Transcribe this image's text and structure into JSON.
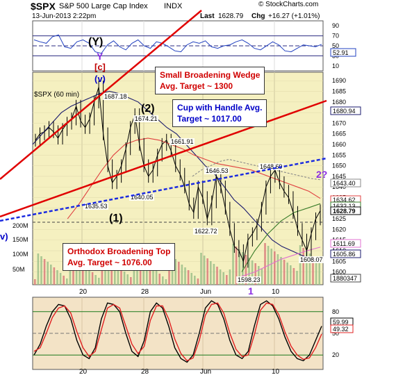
{
  "header": {
    "symbol": "$SPX",
    "name": "S&P 500 Large Cap Index",
    "exchange": "INDX",
    "date": "13-Jun-2013 2:22pm",
    "last_label": "Last",
    "last": "1628.79",
    "chg_label": "Chg",
    "chg": "+16.27 (+1.01%)",
    "credit": "© StockCharts.com",
    "panel_label": "$SPX (60 min)"
  },
  "annotations": {
    "wedge": {
      "line1": "Small  Broadening Wedge",
      "line2": "Avg. Target ~ 1300"
    },
    "cup": {
      "line1": "Cup with Handle Avg.",
      "line2": "Target ~ 1017.00"
    },
    "top": {
      "line1": "Orthodox Broadening Top",
      "line2": "Avg. Target ~ 1076.00"
    },
    "wave_Y": "(Y)",
    "wave_Y2": "Y",
    "wave_c": "[c]",
    "wave_v": "(v)",
    "wave_2": "(2)",
    "wave_1": "(1)",
    "wave_i": "1",
    "wave_q": "2?",
    "wave_v_left": "v)"
  },
  "chart_data": [
    {
      "type": "line",
      "panel": "rsi-top",
      "ylim": [
        0,
        100
      ],
      "ticks": [
        "10",
        "30",
        "50",
        "70",
        "90"
      ],
      "last_value_label": "52.91",
      "series": [
        {
          "values": [
            62,
            58,
            55,
            68,
            72,
            48,
            45,
            58,
            62,
            55,
            38,
            35,
            52,
            60,
            48,
            42,
            55,
            62,
            50,
            45,
            58,
            55,
            48,
            40,
            38,
            52,
            58,
            55,
            60,
            48,
            45,
            50,
            52,
            58,
            62,
            55,
            45,
            42,
            50,
            58,
            52,
            40,
            38,
            45,
            52,
            50,
            48,
            53
          ]
        }
      ]
    },
    {
      "type": "line",
      "panel": "price",
      "ylim": [
        1594,
        1694
      ],
      "ticks": [
        "1600",
        "1605",
        "1610",
        "1615",
        "1620",
        "1625",
        "1630",
        "1635",
        "1640",
        "1645",
        "1650",
        "1655",
        "1660",
        "1665",
        "1670",
        "1675",
        "1680",
        "1685",
        "1690"
      ],
      "xticks": [
        "20",
        "28",
        "Jun",
        "10"
      ],
      "volume_ticks": [
        "50M",
        "100M",
        "150M",
        "200M"
      ],
      "price_labels": [
        "1687.18",
        "1674.21",
        "1661.91",
        "1646.53",
        "1648.69",
        "1640.05",
        "1635.53",
        "1622.72",
        "1598.23",
        "1608.07"
      ],
      "right_labels": [
        "1680.94",
        "1643.40",
        "1634.62",
        "1632.13",
        "1628.79",
        "1611.69",
        "1605.86",
        "1880347"
      ],
      "series": [
        {
          "name": "close",
          "values": [
            1662,
            1665,
            1666,
            1668,
            1666,
            1663,
            1667,
            1670,
            1672,
            1678,
            1671,
            1668,
            1672,
            1680,
            1687,
            1665,
            1650,
            1642,
            1645,
            1650,
            1658,
            1668,
            1674,
            1660,
            1650,
            1645,
            1648,
            1655,
            1660,
            1662,
            1657,
            1650,
            1646,
            1640,
            1632,
            1628,
            1640,
            1635,
            1625,
            1633,
            1645,
            1640,
            1630,
            1620,
            1612,
            1610,
            1605,
            1615,
            1618,
            1622,
            1630,
            1640,
            1645,
            1648,
            1642,
            1638,
            1635,
            1628,
            1620,
            1615,
            1610,
            1618,
            1625,
            1628.79
          ]
        },
        {
          "name": "ma_black",
          "values": [
            1660,
            1665,
            1670,
            1675,
            1678,
            1680,
            1682,
            1684,
            1685,
            1684,
            1682,
            1680,
            1676,
            1672,
            1668,
            1665,
            1660,
            1655,
            1650,
            1646,
            1640,
            1634,
            1630,
            1625,
            1620,
            1615,
            1612,
            1610,
            1608,
            1606,
            1605.86
          ]
        },
        {
          "name": "ma_red",
          "values": [
            1625,
            1632,
            1640,
            1648,
            1655,
            1660,
            1662,
            1663,
            1662,
            1660,
            1658,
            1655,
            1653,
            1651,
            1650,
            1649,
            1648,
            1646,
            1644,
            1642,
            1640,
            1638,
            1634.62
          ]
        },
        {
          "name": "ma_gray",
          "values": [
            1645,
            1648,
            1650,
            1652,
            1653,
            1652,
            1651,
            1650,
            1649,
            1648,
            1647,
            1646,
            1645,
            1644,
            1643.4
          ]
        },
        {
          "name": "ma_green",
          "values": [
            1600,
            1610,
            1618,
            1624,
            1628,
            1630,
            1632.13
          ]
        },
        {
          "name": "ma_pink",
          "values": [
            1598,
            1600,
            1603,
            1606,
            1608,
            1610,
            1611.69
          ]
        }
      ]
    },
    {
      "type": "line",
      "panel": "stochastic",
      "ylim": [
        0,
        100
      ],
      "ticks": [
        "20",
        "50",
        "80"
      ],
      "right_labels": [
        "59.99",
        "49.32"
      ],
      "series": [
        {
          "name": "fast",
          "values": [
            20,
            35,
            60,
            80,
            90,
            88,
            70,
            40,
            20,
            15,
            30,
            70,
            92,
            90,
            80,
            50,
            25,
            18,
            40,
            80,
            92,
            85,
            60,
            30,
            15,
            10,
            20,
            50,
            85,
            95,
            90,
            70,
            40,
            20,
            15,
            25,
            60,
            90,
            95,
            88,
            70,
            45,
            25,
            15,
            12,
            20,
            40,
            60
          ]
        },
        {
          "name": "slow",
          "values": [
            25,
            30,
            50,
            72,
            85,
            88,
            78,
            52,
            30,
            18,
            25,
            55,
            85,
            90,
            85,
            60,
            35,
            22,
            32,
            68,
            88,
            88,
            70,
            42,
            22,
            12,
            16,
            40,
            75,
            90,
            92,
            78,
            50,
            28,
            18,
            20,
            48,
            82,
            92,
            90,
            76,
            52,
            32,
            20,
            14,
            16,
            30,
            49
          ]
        }
      ]
    }
  ]
}
